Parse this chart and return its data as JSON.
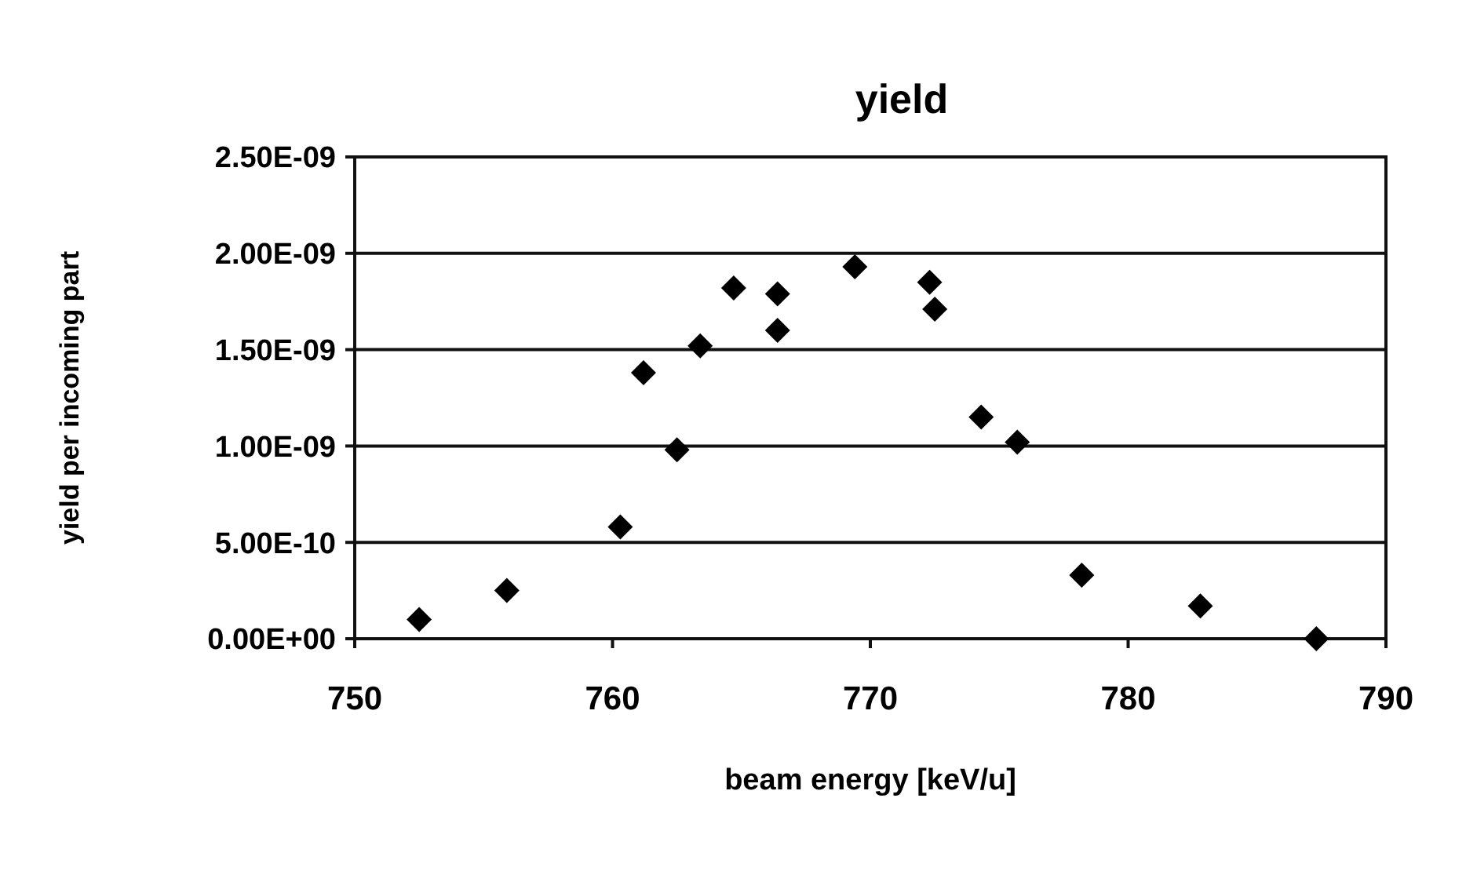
{
  "chart_data": {
    "type": "scatter",
    "title": "yield",
    "xlabel": "beam energy [keV/u]",
    "ylabel": "yield per incoming part",
    "x": [
      752.5,
      755.9,
      760.3,
      761.2,
      762.5,
      763.4,
      764.7,
      766.4,
      766.4,
      769.4,
      772.3,
      772.5,
      774.3,
      775.7,
      778.2,
      782.8,
      787.3
    ],
    "series": [
      {
        "color": "#000000",
        "values": [
          1e-10,
          2.5e-10,
          5.8e-10,
          1.38e-09,
          9.8e-10,
          1.52e-09,
          1.82e-09,
          1.79e-09,
          1.6e-09,
          1.93e-09,
          1.85e-09,
          1.71e-09,
          1.15e-09,
          1.02e-09,
          3.3e-10,
          1.7e-10,
          0
        ]
      }
    ],
    "xlim": [
      750,
      790
    ],
    "xticks": [
      750,
      760,
      770,
      780,
      790
    ],
    "ylim": [
      0,
      2.5e-09
    ],
    "yticks": [
      {
        "value": 0,
        "label": "0.00E+00"
      },
      {
        "value": 5e-10,
        "label": "5.00E-10"
      },
      {
        "value": 1e-09,
        "label": "1.00E-09"
      },
      {
        "value": 1.5e-09,
        "label": "1.50E-09"
      },
      {
        "value": 2e-09,
        "label": "2.00E-09"
      },
      {
        "value": 2.5e-09,
        "label": "2.50E-09"
      }
    ],
    "grid": "y",
    "marker": "diamond"
  }
}
